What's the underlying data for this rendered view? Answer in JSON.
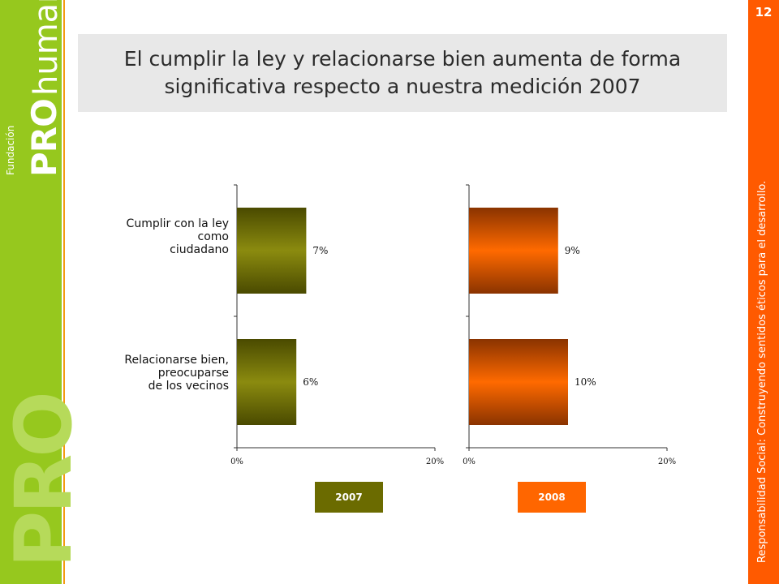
{
  "page": {
    "number": "12"
  },
  "branding": {
    "fundacion": "Fundación",
    "pro": "PRO",
    "humana": "humana",
    "big_pro": "PRO",
    "footer": "Responsabilidad Social: Construyendo sentidos éticos para el desarrollo."
  },
  "title": "El cumplir la ley y relacionarse bien aumenta de forma significativa respecto a nuestra medición 2007",
  "chart_data": {
    "type": "bar",
    "orientation": "horizontal",
    "categories": [
      "Cumplir con la ley\ncomo\nciudadano",
      "Relacionarse bien,\npreocuparse\nde los vecinos"
    ],
    "xlim": [
      0,
      20
    ],
    "x_tick_labels": [
      "0%",
      "20%"
    ],
    "series": [
      {
        "name": "2007",
        "values": [
          7,
          6
        ],
        "data_labels": [
          "7%",
          "6%"
        ],
        "color": "#6b6b00"
      },
      {
        "name": "2008",
        "values": [
          9,
          10
        ],
        "data_labels": [
          "9%",
          "10%"
        ],
        "color": "#ff6600"
      }
    ],
    "legend_placement": "bottom",
    "grid": false
  },
  "colors": {
    "sidebar_green": "#96c81e",
    "accent_orange": "#ff5a00",
    "bar_2007": "#6b6b00",
    "bar_2008": "#ff6600"
  }
}
